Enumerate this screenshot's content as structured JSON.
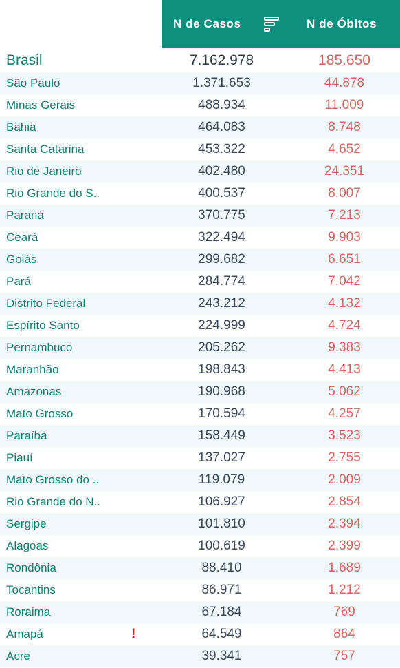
{
  "header": {
    "col_casos": "N de Casos",
    "col_obitos": "N de Óbitos"
  },
  "total": {
    "state": "Brasil",
    "casos": "7.162.978",
    "obitos": "185.650"
  },
  "rows": [
    {
      "state": "São Paulo",
      "casos": "1.371.653",
      "obitos": "44.878"
    },
    {
      "state": "Minas Gerais",
      "casos": "488.934",
      "obitos": "11.009"
    },
    {
      "state": "Bahia",
      "casos": "464.083",
      "obitos": "8.748"
    },
    {
      "state": "Santa Catarina",
      "casos": "453.322",
      "obitos": "4.652"
    },
    {
      "state": "Rio de Janeiro",
      "casos": "402.480",
      "obitos": "24.351"
    },
    {
      "state": "Rio Grande do S..",
      "casos": "400.537",
      "obitos": "8.007"
    },
    {
      "state": "Paraná",
      "casos": "370.775",
      "obitos": "7.213"
    },
    {
      "state": "Ceará",
      "casos": "322.494",
      "obitos": "9.903"
    },
    {
      "state": "Goiás",
      "casos": "299.682",
      "obitos": "6.651"
    },
    {
      "state": "Pará",
      "casos": "284.774",
      "obitos": "7.042"
    },
    {
      "state": "Distrito Federal",
      "casos": "243.212",
      "obitos": "4.132"
    },
    {
      "state": "Espírito Santo",
      "casos": "224.999",
      "obitos": "4.724"
    },
    {
      "state": "Pernambuco",
      "casos": "205.262",
      "obitos": "9.383"
    },
    {
      "state": "Maranhão",
      "casos": "198.843",
      "obitos": "4.413"
    },
    {
      "state": "Amazonas",
      "casos": "190.968",
      "obitos": "5.062"
    },
    {
      "state": "Mato Grosso",
      "casos": "170.594",
      "obitos": "4.257"
    },
    {
      "state": "Paraíba",
      "casos": "158.449",
      "obitos": "3.523"
    },
    {
      "state": "Piauí",
      "casos": "137.027",
      "obitos": "2.755"
    },
    {
      "state": "Mato Grosso do ..",
      "casos": "119.079",
      "obitos": "2.009"
    },
    {
      "state": "Rio Grande do N..",
      "casos": "106.927",
      "obitos": "2.854"
    },
    {
      "state": "Sergipe",
      "casos": "101.810",
      "obitos": "2.394"
    },
    {
      "state": "Alagoas",
      "casos": "100.619",
      "obitos": "2.399"
    },
    {
      "state": "Rondônia",
      "casos": "88.410",
      "obitos": "1.689"
    },
    {
      "state": "Tocantins",
      "casos": "86.971",
      "obitos": "1.212"
    },
    {
      "state": "Roraima",
      "casos": "67.184",
      "obitos": "769"
    },
    {
      "state": "Amapá",
      "casos": "64.549",
      "obitos": "864",
      "alert": "!"
    },
    {
      "state": "Acre",
      "casos": "39.341",
      "obitos": "757"
    }
  ]
}
